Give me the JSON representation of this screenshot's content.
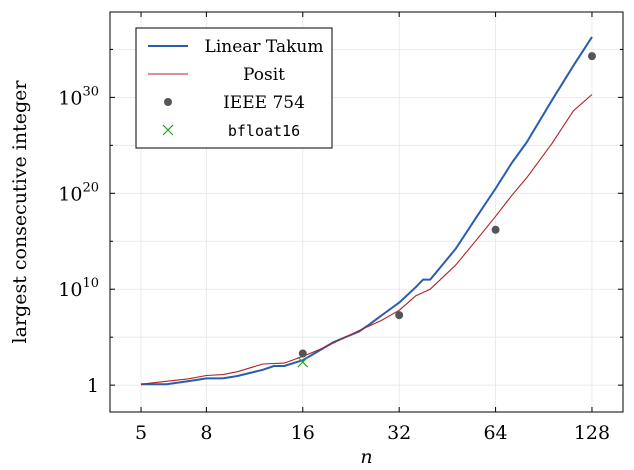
{
  "chart_data": {
    "type": "line",
    "xlabel": "n",
    "ylabel": "largest consecutive integer",
    "x_scale": "log2",
    "y_scale": "log10",
    "xlim": [
      4,
      160
    ],
    "ylim_log10": [
      -2.8,
      38.9
    ],
    "x_ticks": [
      5,
      8,
      16,
      32,
      64,
      128
    ],
    "x_tick_labels": [
      "5",
      "8",
      "16",
      "32",
      "64",
      "128"
    ],
    "y_ticks_log10": [
      0,
      10,
      20,
      30
    ],
    "y_tick_labels": [
      {
        "base": "1",
        "exp": ""
      },
      {
        "base": "10",
        "exp": "10"
      },
      {
        "base": "10",
        "exp": "20"
      },
      {
        "base": "10",
        "exp": "30"
      }
    ],
    "grid": true,
    "legend_placement": "top-left",
    "series": [
      {
        "name": "Linear Takum",
        "style": "line",
        "color": "#2a5db0",
        "x": [
          5,
          6,
          7,
          8,
          9,
          10,
          12,
          13,
          14,
          16,
          18,
          20,
          24,
          26,
          28,
          32,
          36,
          38,
          40,
          48,
          56,
          64,
          72,
          80,
          96,
          112,
          128
        ],
        "y_log10": [
          0.1,
          0.1,
          0.4,
          0.7,
          0.7,
          0.95,
          1.6,
          2.0,
          2.0,
          2.6,
          3.6,
          4.5,
          5.6,
          6.4,
          7.2,
          8.6,
          10.2,
          11.0,
          11.0,
          14.2,
          17.6,
          20.5,
          23.2,
          25.3,
          29.7,
          33.3,
          36.3
        ]
      },
      {
        "name": "Posit",
        "style": "line",
        "color": "#b22222",
        "x": [
          5,
          6,
          7,
          8,
          9,
          10,
          12,
          14,
          16,
          18,
          20,
          24,
          28,
          32,
          36,
          40,
          48,
          56,
          64,
          72,
          80,
          96,
          112,
          128
        ],
        "y_log10": [
          0.1,
          0.4,
          0.65,
          1.0,
          1.1,
          1.4,
          2.2,
          2.3,
          3.0,
          3.7,
          4.4,
          5.7,
          6.7,
          7.8,
          9.3,
          10.0,
          12.5,
          15.2,
          17.6,
          19.8,
          21.6,
          25.2,
          28.6,
          30.3
        ]
      },
      {
        "name": "IEEE 754",
        "style": "marker",
        "marker": "dot",
        "color": "#555555",
        "x": [
          16,
          32,
          64,
          128
        ],
        "y_log10": [
          3.3,
          7.3,
          16.2,
          34.3
        ]
      },
      {
        "name": "bfloat16",
        "style": "marker",
        "marker": "cross",
        "color": "#2a9d2a",
        "x": [
          16
        ],
        "y_log10": [
          2.4
        ]
      }
    ]
  }
}
